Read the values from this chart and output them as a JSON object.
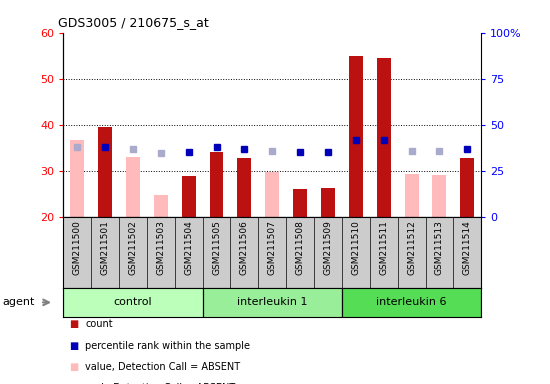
{
  "title": "GDS3005 / 210675_s_at",
  "samples": [
    "GSM211500",
    "GSM211501",
    "GSM211502",
    "GSM211503",
    "GSM211504",
    "GSM211505",
    "GSM211506",
    "GSM211507",
    "GSM211508",
    "GSM211509",
    "GSM211510",
    "GSM211511",
    "GSM211512",
    "GSM211513",
    "GSM211514"
  ],
  "groups": [
    {
      "label": "control",
      "color": "#bbffbb",
      "start": 0,
      "end": 4
    },
    {
      "label": "interleukin 1",
      "color": "#99ee99",
      "start": 5,
      "end": 9
    },
    {
      "label": "interleukin 6",
      "color": "#55dd55",
      "start": 10,
      "end": 14
    }
  ],
  "count": [
    null,
    39.5,
    null,
    null,
    28.8,
    34.2,
    32.8,
    null,
    26.0,
    26.3,
    55.0,
    54.5,
    null,
    null,
    32.8
  ],
  "absent_value": [
    36.8,
    null,
    33.0,
    24.8,
    null,
    null,
    null,
    29.8,
    null,
    null,
    null,
    null,
    29.3,
    29.0,
    null
  ],
  "rank_present": [
    null,
    38.0,
    null,
    null,
    35.5,
    37.8,
    37.0,
    null,
    35.0,
    35.0,
    41.5,
    41.5,
    null,
    null,
    37.0
  ],
  "rank_absent": [
    38.0,
    null,
    37.0,
    34.8,
    null,
    null,
    null,
    35.8,
    null,
    null,
    null,
    null,
    35.8,
    35.8,
    null
  ],
  "ylim_left": [
    20,
    60
  ],
  "ylim_right": [
    0,
    100
  ],
  "yticks_left": [
    20,
    30,
    40,
    50,
    60
  ],
  "yticks_right": [
    0,
    25,
    50,
    75,
    100
  ],
  "count_color": "#bb1111",
  "absent_value_color": "#ffbbbb",
  "rank_present_color": "#0000bb",
  "rank_absent_color": "#aaaacc",
  "agent_label": "agent",
  "plot_bg": "#ffffff",
  "xtick_bg": "#cccccc",
  "marker_size": 5,
  "bar_width": 0.5
}
